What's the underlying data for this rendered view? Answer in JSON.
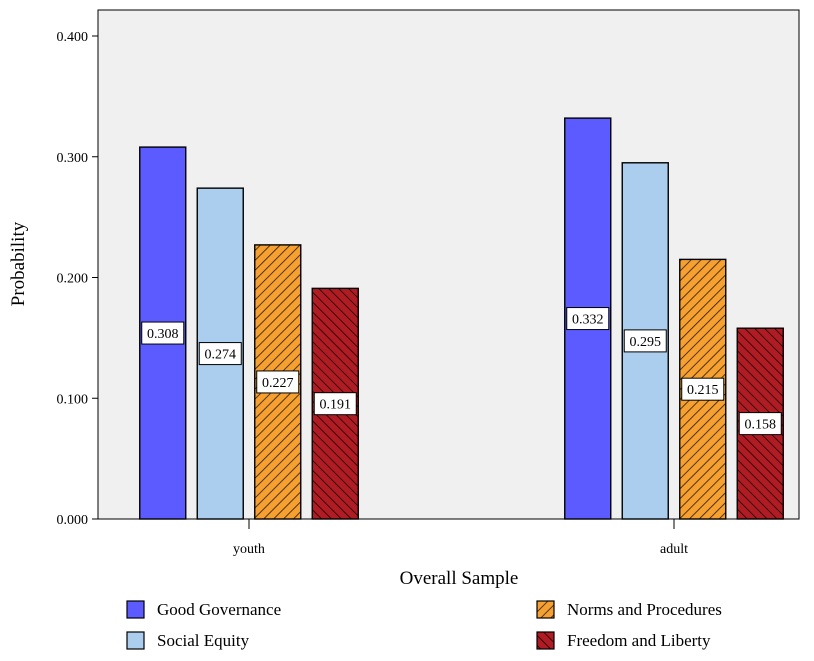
{
  "chart_data": {
    "type": "bar",
    "title": "",
    "xlabel": "Overall Sample",
    "ylabel": "Probability",
    "ylim": [
      0,
      0.4
    ],
    "yticks": [
      "0.000",
      "0.100",
      "0.200",
      "0.300",
      "0.400"
    ],
    "categories": [
      "youth",
      "adult"
    ],
    "grid": false,
    "legend_position": "bottom",
    "series": [
      {
        "name": "Good Governance",
        "color": "#5b5bff",
        "pattern": "solid",
        "values": [
          0.308,
          0.332
        ],
        "labels": [
          "0.308",
          "0.332"
        ]
      },
      {
        "name": "Social Equity",
        "color": "#abcdee",
        "pattern": "solid",
        "values": [
          0.274,
          0.295
        ],
        "labels": [
          "0.274",
          "0.295"
        ]
      },
      {
        "name": "Norms and Procedures",
        "color": "#f5a030",
        "pattern": "hatch",
        "values": [
          0.227,
          0.215
        ],
        "labels": [
          "0.227",
          "0.215"
        ]
      },
      {
        "name": "Freedom and Liberty",
        "color": "#b01c24",
        "pattern": "hatch",
        "values": [
          0.191,
          0.158
        ],
        "labels": [
          "0.191",
          "0.158"
        ]
      }
    ]
  }
}
